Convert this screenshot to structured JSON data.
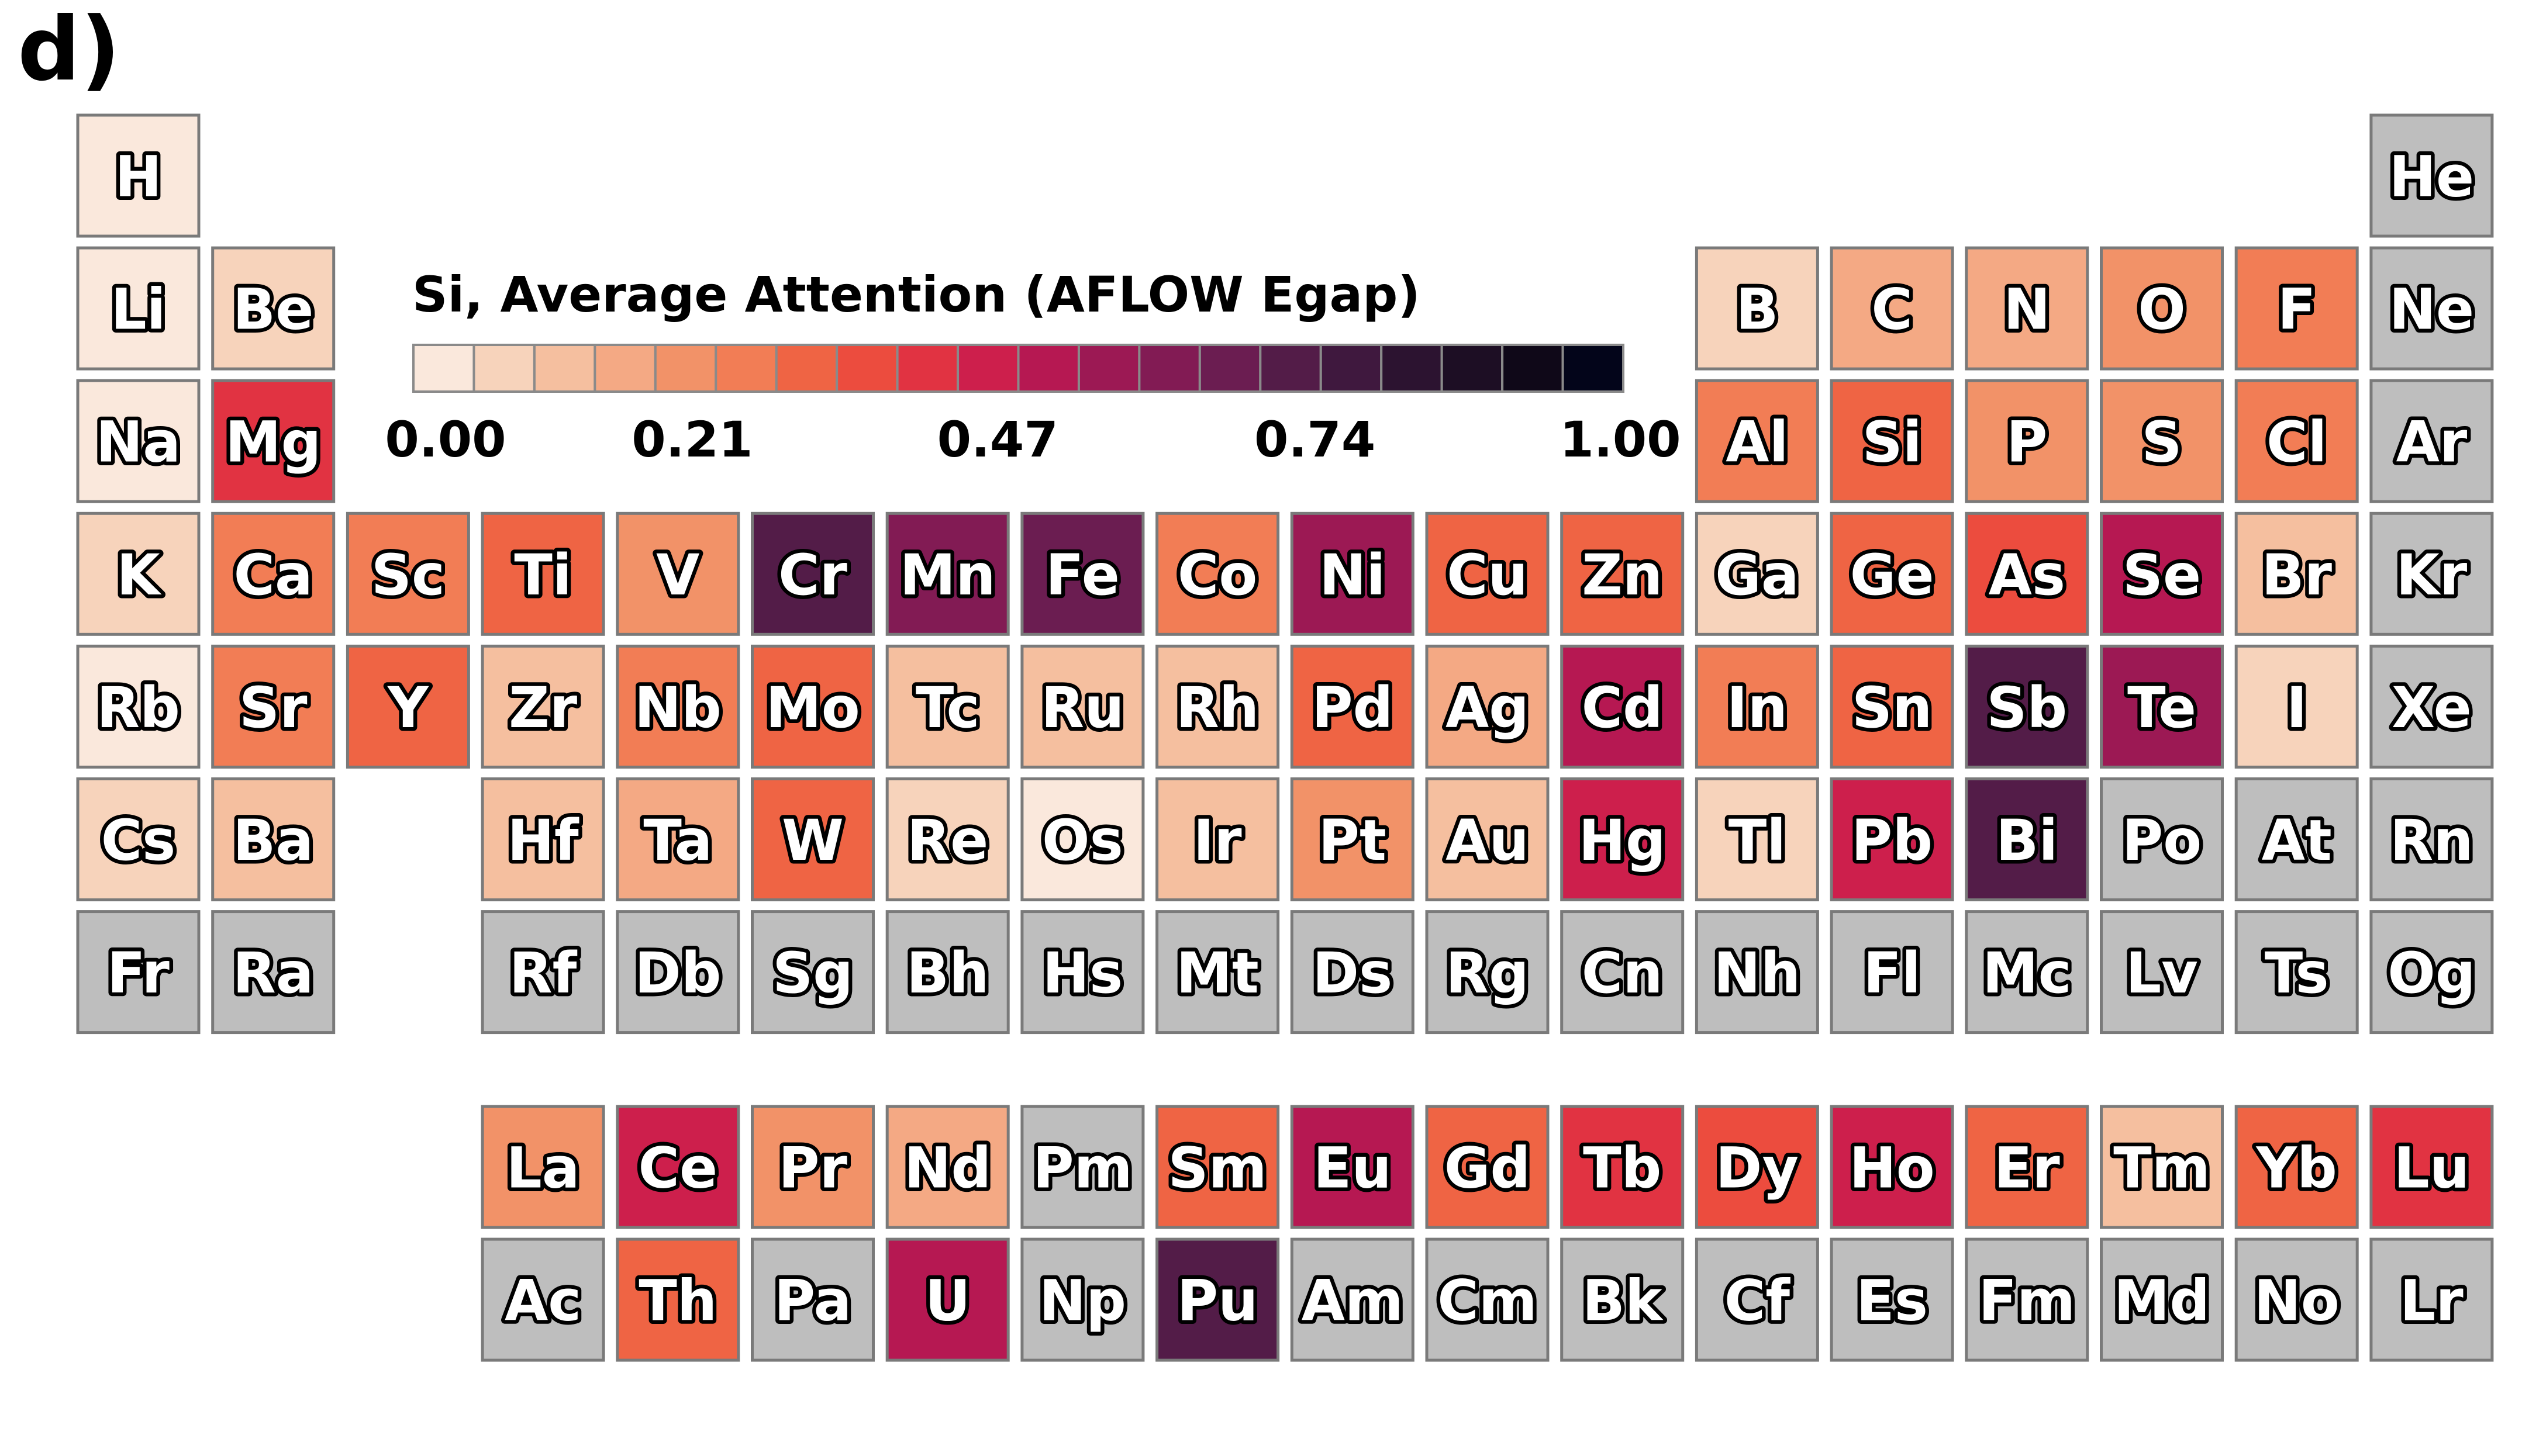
{
  "panel_label": "d)",
  "chart_data": {
    "type": "heatmap",
    "title": "Si, Average Attention (AFLOW Egap)",
    "colorbar": {
      "ticks": [
        "0.00",
        "0.21",
        "0.47",
        "0.74",
        "1.00"
      ],
      "tick_values": [
        0.0,
        0.21,
        0.47,
        0.74,
        1.0
      ],
      "range": [
        0,
        1
      ],
      "num_bins": 20,
      "colormap": "rocket_r",
      "bin_colors": [
        "#fae8dc",
        "#f7d3bb",
        "#f5bf9f",
        "#f4a984",
        "#f29268",
        "#f27d55",
        "#ef6444",
        "#ec4c3e",
        "#e13342",
        "#cd1f4c",
        "#b61852",
        "#9c1954",
        "#821b54",
        "#6b1d51",
        "#531c48",
        "#3f183e",
        "#2c1330",
        "#1d0e24",
        "#0f0818",
        "#03051a"
      ]
    },
    "no_data_color": "#bebebe",
    "elements": [
      {
        "symbol": "H",
        "row": 1,
        "col": 1,
        "value": 0.03
      },
      {
        "symbol": "He",
        "row": 1,
        "col": 18,
        "value": null
      },
      {
        "symbol": "Li",
        "row": 2,
        "col": 1,
        "value": 0.03
      },
      {
        "symbol": "Be",
        "row": 2,
        "col": 2,
        "value": 0.08
      },
      {
        "symbol": "B",
        "row": 2,
        "col": 13,
        "value": 0.06
      },
      {
        "symbol": "C",
        "row": 2,
        "col": 14,
        "value": 0.18
      },
      {
        "symbol": "N",
        "row": 2,
        "col": 15,
        "value": 0.18
      },
      {
        "symbol": "O",
        "row": 2,
        "col": 16,
        "value": 0.2
      },
      {
        "symbol": "F",
        "row": 2,
        "col": 17,
        "value": 0.28
      },
      {
        "symbol": "Ne",
        "row": 2,
        "col": 18,
        "value": null
      },
      {
        "symbol": "Na",
        "row": 3,
        "col": 1,
        "value": 0.04
      },
      {
        "symbol": "Mg",
        "row": 3,
        "col": 2,
        "value": 0.43
      },
      {
        "symbol": "Al",
        "row": 3,
        "col": 13,
        "value": 0.27
      },
      {
        "symbol": "Si",
        "row": 3,
        "col": 14,
        "value": 0.33
      },
      {
        "symbol": "P",
        "row": 3,
        "col": 15,
        "value": 0.2
      },
      {
        "symbol": "S",
        "row": 3,
        "col": 16,
        "value": 0.2
      },
      {
        "symbol": "Cl",
        "row": 3,
        "col": 17,
        "value": 0.28
      },
      {
        "symbol": "Ar",
        "row": 3,
        "col": 18,
        "value": null
      },
      {
        "symbol": "K",
        "row": 4,
        "col": 1,
        "value": 0.06
      },
      {
        "symbol": "Ca",
        "row": 4,
        "col": 2,
        "value": 0.28
      },
      {
        "symbol": "Sc",
        "row": 4,
        "col": 3,
        "value": 0.25
      },
      {
        "symbol": "Ti",
        "row": 4,
        "col": 4,
        "value": 0.31
      },
      {
        "symbol": "V",
        "row": 4,
        "col": 5,
        "value": 0.21
      },
      {
        "symbol": "Cr",
        "row": 4,
        "col": 6,
        "value": 0.74
      },
      {
        "symbol": "Mn",
        "row": 4,
        "col": 7,
        "value": 0.62
      },
      {
        "symbol": "Fe",
        "row": 4,
        "col": 8,
        "value": 0.67
      },
      {
        "symbol": "Co",
        "row": 4,
        "col": 9,
        "value": 0.28
      },
      {
        "symbol": "Ni",
        "row": 4,
        "col": 10,
        "value": 0.57
      },
      {
        "symbol": "Cu",
        "row": 4,
        "col": 11,
        "value": 0.33
      },
      {
        "symbol": "Zn",
        "row": 4,
        "col": 12,
        "value": 0.31
      },
      {
        "symbol": "Ga",
        "row": 4,
        "col": 13,
        "value": 0.05
      },
      {
        "symbol": "Ge",
        "row": 4,
        "col": 14,
        "value": 0.31
      },
      {
        "symbol": "As",
        "row": 4,
        "col": 15,
        "value": 0.38
      },
      {
        "symbol": "Se",
        "row": 4,
        "col": 16,
        "value": 0.51
      },
      {
        "symbol": "Br",
        "row": 4,
        "col": 17,
        "value": 0.12
      },
      {
        "symbol": "Kr",
        "row": 4,
        "col": 18,
        "value": null
      },
      {
        "symbol": "Rb",
        "row": 5,
        "col": 1,
        "value": 0.02
      },
      {
        "symbol": "Sr",
        "row": 5,
        "col": 2,
        "value": 0.25
      },
      {
        "symbol": "Y",
        "row": 5,
        "col": 3,
        "value": 0.34
      },
      {
        "symbol": "Zr",
        "row": 5,
        "col": 4,
        "value": 0.13
      },
      {
        "symbol": "Nb",
        "row": 5,
        "col": 5,
        "value": 0.26
      },
      {
        "symbol": "Mo",
        "row": 5,
        "col": 6,
        "value": 0.31
      },
      {
        "symbol": "Tc",
        "row": 5,
        "col": 7,
        "value": 0.14
      },
      {
        "symbol": "Ru",
        "row": 5,
        "col": 8,
        "value": 0.12
      },
      {
        "symbol": "Rh",
        "row": 5,
        "col": 9,
        "value": 0.12
      },
      {
        "symbol": "Pd",
        "row": 5,
        "col": 10,
        "value": 0.34
      },
      {
        "symbol": "Ag",
        "row": 5,
        "col": 11,
        "value": 0.19
      },
      {
        "symbol": "Cd",
        "row": 5,
        "col": 12,
        "value": 0.53
      },
      {
        "symbol": "In",
        "row": 5,
        "col": 13,
        "value": 0.26
      },
      {
        "symbol": "Sn",
        "row": 5,
        "col": 14,
        "value": 0.33
      },
      {
        "symbol": "Sb",
        "row": 5,
        "col": 15,
        "value": 0.72
      },
      {
        "symbol": "Te",
        "row": 5,
        "col": 16,
        "value": 0.57
      },
      {
        "symbol": "I",
        "row": 5,
        "col": 17,
        "value": 0.09
      },
      {
        "symbol": "Xe",
        "row": 5,
        "col": 18,
        "value": null
      },
      {
        "symbol": "Cs",
        "row": 6,
        "col": 1,
        "value": 0.06
      },
      {
        "symbol": "Ba",
        "row": 6,
        "col": 2,
        "value": 0.13
      },
      {
        "symbol": "Hf",
        "row": 6,
        "col": 4,
        "value": 0.12
      },
      {
        "symbol": "Ta",
        "row": 6,
        "col": 5,
        "value": 0.15
      },
      {
        "symbol": "W",
        "row": 6,
        "col": 6,
        "value": 0.31
      },
      {
        "symbol": "Re",
        "row": 6,
        "col": 7,
        "value": 0.09
      },
      {
        "symbol": "Os",
        "row": 6,
        "col": 8,
        "value": 0.04
      },
      {
        "symbol": "Ir",
        "row": 6,
        "col": 9,
        "value": 0.11
      },
      {
        "symbol": "Pt",
        "row": 6,
        "col": 10,
        "value": 0.2
      },
      {
        "symbol": "Au",
        "row": 6,
        "col": 11,
        "value": 0.1
      },
      {
        "symbol": "Hg",
        "row": 6,
        "col": 12,
        "value": 0.48
      },
      {
        "symbol": "Tl",
        "row": 6,
        "col": 13,
        "value": 0.09
      },
      {
        "symbol": "Pb",
        "row": 6,
        "col": 14,
        "value": 0.46
      },
      {
        "symbol": "Bi",
        "row": 6,
        "col": 15,
        "value": 0.72
      },
      {
        "symbol": "Po",
        "row": 6,
        "col": 16,
        "value": null
      },
      {
        "symbol": "At",
        "row": 6,
        "col": 17,
        "value": null
      },
      {
        "symbol": "Rn",
        "row": 6,
        "col": 18,
        "value": null
      },
      {
        "symbol": "Fr",
        "row": 7,
        "col": 1,
        "value": null
      },
      {
        "symbol": "Ra",
        "row": 7,
        "col": 2,
        "value": null
      },
      {
        "symbol": "Rf",
        "row": 7,
        "col": 4,
        "value": null
      },
      {
        "symbol": "Db",
        "row": 7,
        "col": 5,
        "value": null
      },
      {
        "symbol": "Sg",
        "row": 7,
        "col": 6,
        "value": null
      },
      {
        "symbol": "Bh",
        "row": 7,
        "col": 7,
        "value": null
      },
      {
        "symbol": "Hs",
        "row": 7,
        "col": 8,
        "value": null
      },
      {
        "symbol": "Mt",
        "row": 7,
        "col": 9,
        "value": null
      },
      {
        "symbol": "Ds",
        "row": 7,
        "col": 10,
        "value": null
      },
      {
        "symbol": "Rg",
        "row": 7,
        "col": 11,
        "value": null
      },
      {
        "symbol": "Cn",
        "row": 7,
        "col": 12,
        "value": null
      },
      {
        "symbol": "Nh",
        "row": 7,
        "col": 13,
        "value": null
      },
      {
        "symbol": "Fl",
        "row": 7,
        "col": 14,
        "value": null
      },
      {
        "symbol": "Mc",
        "row": 7,
        "col": 15,
        "value": null
      },
      {
        "symbol": "Lv",
        "row": 7,
        "col": 16,
        "value": null
      },
      {
        "symbol": "Ts",
        "row": 7,
        "col": 17,
        "value": null
      },
      {
        "symbol": "Og",
        "row": 7,
        "col": 18,
        "value": null
      },
      {
        "symbol": "La",
        "row": 9,
        "col": 4,
        "value": 0.22
      },
      {
        "symbol": "Ce",
        "row": 9,
        "col": 5,
        "value": 0.45
      },
      {
        "symbol": "Pr",
        "row": 9,
        "col": 6,
        "value": 0.23
      },
      {
        "symbol": "Nd",
        "row": 9,
        "col": 7,
        "value": 0.19
      },
      {
        "symbol": "Pm",
        "row": 9,
        "col": 8,
        "value": null
      },
      {
        "symbol": "Sm",
        "row": 9,
        "col": 9,
        "value": 0.33
      },
      {
        "symbol": "Eu",
        "row": 9,
        "col": 10,
        "value": 0.52
      },
      {
        "symbol": "Gd",
        "row": 9,
        "col": 11,
        "value": 0.31
      },
      {
        "symbol": "Tb",
        "row": 9,
        "col": 12,
        "value": 0.44
      },
      {
        "symbol": "Dy",
        "row": 9,
        "col": 13,
        "value": 0.39
      },
      {
        "symbol": "Ho",
        "row": 9,
        "col": 14,
        "value": 0.45
      },
      {
        "symbol": "Er",
        "row": 9,
        "col": 15,
        "value": 0.33
      },
      {
        "symbol": "Tm",
        "row": 9,
        "col": 16,
        "value": 0.13
      },
      {
        "symbol": "Yb",
        "row": 9,
        "col": 17,
        "value": 0.31
      },
      {
        "symbol": "Lu",
        "row": 9,
        "col": 18,
        "value": 0.43
      },
      {
        "symbol": "Ac",
        "row": 10,
        "col": 4,
        "value": null
      },
      {
        "symbol": "Th",
        "row": 10,
        "col": 5,
        "value": 0.31
      },
      {
        "symbol": "Pa",
        "row": 10,
        "col": 6,
        "value": null
      },
      {
        "symbol": "U",
        "row": 10,
        "col": 7,
        "value": 0.5
      },
      {
        "symbol": "Np",
        "row": 10,
        "col": 8,
        "value": null
      },
      {
        "symbol": "Pu",
        "row": 10,
        "col": 9,
        "value": 0.74
      },
      {
        "symbol": "Am",
        "row": 10,
        "col": 10,
        "value": null
      },
      {
        "symbol": "Cm",
        "row": 10,
        "col": 11,
        "value": null
      },
      {
        "symbol": "Bk",
        "row": 10,
        "col": 12,
        "value": null
      },
      {
        "symbol": "Cf",
        "row": 10,
        "col": 13,
        "value": null
      },
      {
        "symbol": "Es",
        "row": 10,
        "col": 14,
        "value": null
      },
      {
        "symbol": "Fm",
        "row": 10,
        "col": 15,
        "value": null
      },
      {
        "symbol": "Md",
        "row": 10,
        "col": 16,
        "value": null
      },
      {
        "symbol": "No",
        "row": 10,
        "col": 17,
        "value": null
      },
      {
        "symbol": "Lr",
        "row": 10,
        "col": 18,
        "value": null
      }
    ]
  }
}
